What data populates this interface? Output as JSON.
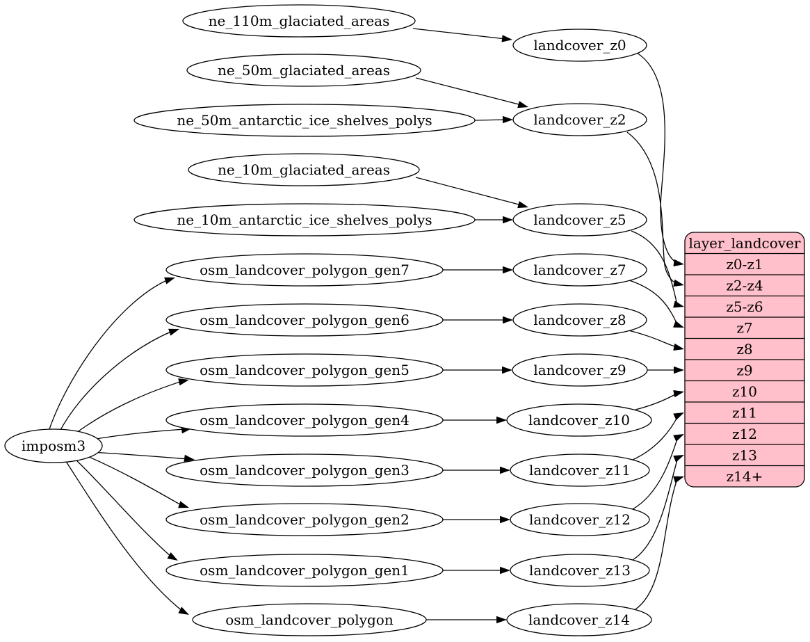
{
  "diagram": {
    "type": "digraph",
    "background_color": "#ffffff",
    "node_fill": "#ffffff",
    "node_stroke": "#000000",
    "edge_color": "#000000",
    "record_fill": "#ffc0cb",
    "nodes": [
      {
        "id": "imposm3",
        "label": "imposm3"
      },
      {
        "id": "ne_110m_glaciated_areas",
        "label": "ne_110m_glaciated_areas"
      },
      {
        "id": "ne_50m_glaciated_areas",
        "label": "ne_50m_glaciated_areas"
      },
      {
        "id": "ne_50m_antarctic_ice_shelves_polys",
        "label": "ne_50m_antarctic_ice_shelves_polys"
      },
      {
        "id": "ne_10m_glaciated_areas",
        "label": "ne_10m_glaciated_areas"
      },
      {
        "id": "ne_10m_antarctic_ice_shelves_polys",
        "label": "ne_10m_antarctic_ice_shelves_polys"
      },
      {
        "id": "osm_landcover_polygon_gen7",
        "label": "osm_landcover_polygon_gen7"
      },
      {
        "id": "osm_landcover_polygon_gen6",
        "label": "osm_landcover_polygon_gen6"
      },
      {
        "id": "osm_landcover_polygon_gen5",
        "label": "osm_landcover_polygon_gen5"
      },
      {
        "id": "osm_landcover_polygon_gen4",
        "label": "osm_landcover_polygon_gen4"
      },
      {
        "id": "osm_landcover_polygon_gen3",
        "label": "osm_landcover_polygon_gen3"
      },
      {
        "id": "osm_landcover_polygon_gen2",
        "label": "osm_landcover_polygon_gen2"
      },
      {
        "id": "osm_landcover_polygon_gen1",
        "label": "osm_landcover_polygon_gen1"
      },
      {
        "id": "osm_landcover_polygon",
        "label": "osm_landcover_polygon"
      },
      {
        "id": "landcover_z0",
        "label": "landcover_z0"
      },
      {
        "id": "landcover_z2",
        "label": "landcover_z2"
      },
      {
        "id": "landcover_z5",
        "label": "landcover_z5"
      },
      {
        "id": "landcover_z7",
        "label": "landcover_z7"
      },
      {
        "id": "landcover_z8",
        "label": "landcover_z8"
      },
      {
        "id": "landcover_z9",
        "label": "landcover_z9"
      },
      {
        "id": "landcover_z10",
        "label": "landcover_z10"
      },
      {
        "id": "landcover_z11",
        "label": "landcover_z11"
      },
      {
        "id": "landcover_z12",
        "label": "landcover_z12"
      },
      {
        "id": "landcover_z13",
        "label": "landcover_z13"
      },
      {
        "id": "landcover_z14",
        "label": "landcover_z14"
      }
    ],
    "record": {
      "id": "layer_landcover",
      "title": "layer_landcover",
      "rows": [
        "z0-z1",
        "z2-z4",
        "z5-z6",
        "z7",
        "z8",
        "z9",
        "z10",
        "z11",
        "z12",
        "z13",
        "z14+"
      ]
    },
    "edges": [
      {
        "from": "imposm3",
        "to": "osm_landcover_polygon_gen7"
      },
      {
        "from": "imposm3",
        "to": "osm_landcover_polygon_gen6"
      },
      {
        "from": "imposm3",
        "to": "osm_landcover_polygon_gen5"
      },
      {
        "from": "imposm3",
        "to": "osm_landcover_polygon_gen4"
      },
      {
        "from": "imposm3",
        "to": "osm_landcover_polygon_gen3"
      },
      {
        "from": "imposm3",
        "to": "osm_landcover_polygon_gen2"
      },
      {
        "from": "imposm3",
        "to": "osm_landcover_polygon_gen1"
      },
      {
        "from": "imposm3",
        "to": "osm_landcover_polygon"
      },
      {
        "from": "ne_110m_glaciated_areas",
        "to": "landcover_z0"
      },
      {
        "from": "ne_50m_glaciated_areas",
        "to": "landcover_z2"
      },
      {
        "from": "ne_50m_antarctic_ice_shelves_polys",
        "to": "landcover_z2"
      },
      {
        "from": "ne_10m_glaciated_areas",
        "to": "landcover_z5"
      },
      {
        "from": "ne_10m_antarctic_ice_shelves_polys",
        "to": "landcover_z5"
      },
      {
        "from": "osm_landcover_polygon_gen7",
        "to": "landcover_z7"
      },
      {
        "from": "osm_landcover_polygon_gen6",
        "to": "landcover_z8"
      },
      {
        "from": "osm_landcover_polygon_gen5",
        "to": "landcover_z9"
      },
      {
        "from": "osm_landcover_polygon_gen4",
        "to": "landcover_z10"
      },
      {
        "from": "osm_landcover_polygon_gen3",
        "to": "landcover_z11"
      },
      {
        "from": "osm_landcover_polygon_gen2",
        "to": "landcover_z12"
      },
      {
        "from": "osm_landcover_polygon_gen1",
        "to": "landcover_z13"
      },
      {
        "from": "osm_landcover_polygon",
        "to": "landcover_z14"
      },
      {
        "from": "landcover_z0",
        "to": "layer_landcover",
        "port": "z0-z1"
      },
      {
        "from": "landcover_z2",
        "to": "layer_landcover",
        "port": "z2-z4"
      },
      {
        "from": "landcover_z5",
        "to": "layer_landcover",
        "port": "z5-z6"
      },
      {
        "from": "landcover_z7",
        "to": "layer_landcover",
        "port": "z7"
      },
      {
        "from": "landcover_z8",
        "to": "layer_landcover",
        "port": "z8"
      },
      {
        "from": "landcover_z9",
        "to": "layer_landcover",
        "port": "z9"
      },
      {
        "from": "landcover_z10",
        "to": "layer_landcover",
        "port": "z10"
      },
      {
        "from": "landcover_z11",
        "to": "layer_landcover",
        "port": "z11"
      },
      {
        "from": "landcover_z12",
        "to": "layer_landcover",
        "port": "z12"
      },
      {
        "from": "landcover_z13",
        "to": "layer_landcover",
        "port": "z13"
      },
      {
        "from": "landcover_z14",
        "to": "layer_landcover",
        "port": "z14+"
      }
    ]
  }
}
